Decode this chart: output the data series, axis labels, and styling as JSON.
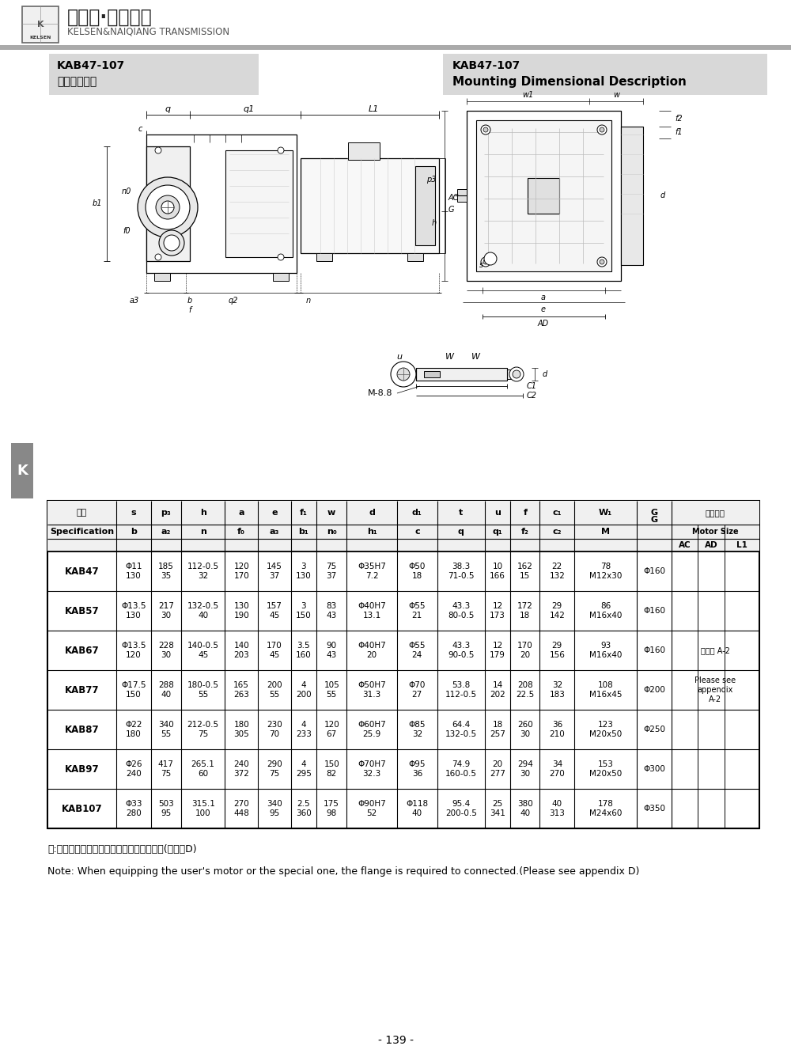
{
  "page_bg": "#ffffff",
  "header_line_color": "#aaaaaa",
  "header_logo_text": "凯尔森·耐强传动",
  "header_sub_text": "KELSEN&NAIQIANG TRANSMISSION",
  "title_left_main": "KAB47-107",
  "title_left_sub": "安装结构尺寸",
  "title_right_main": "KAB47-107",
  "title_right_sub": "Mounting Dimensional Description",
  "title_bg": "#d8d8d8",
  "note_zh": "注:电机需方配或配特殊电机时需加联接法兰(见附录D)",
  "note_en": "Note: When equipping the user's motor or the special one, the flange is required to connected.(Please see appendix D)",
  "page_number": "- 139 -",
  "rows": [
    {
      "spec": "KAB47",
      "s": "Φ11\n130",
      "p3": "185\n35",
      "h": "112-0.5\n32",
      "a": "120\n170",
      "e": "145\n37",
      "f1": "3\n130",
      "w": "75\n37",
      "d": "Φ35H7\n7.2",
      "d1": "Φ50\n18",
      "t": "38.3\n71-0.5",
      "u": "10\n166",
      "f": "162\n15",
      "c1": "22\n132",
      "W1": "78\nM12x30",
      "G": "Φ160",
      "note": ""
    },
    {
      "spec": "KAB57",
      "s": "Φ13.5\n130",
      "p3": "217\n30",
      "h": "132-0.5\n40",
      "a": "130\n190",
      "e": "157\n45",
      "f1": "3\n150",
      "w": "83\n43",
      "d": "Φ40H7\n13.1",
      "d1": "Φ55\n21",
      "t": "43.3\n80-0.5",
      "u": "12\n173",
      "f": "172\n18",
      "c1": "29\n142",
      "W1": "86\nM16x40",
      "G": "Φ160",
      "note": ""
    },
    {
      "spec": "KAB67",
      "s": "Φ13.5\n120",
      "p3": "228\n30",
      "h": "140-0.5\n45",
      "a": "140\n203",
      "e": "170\n45",
      "f1": "3.5\n160",
      "w": "90\n43",
      "d": "Φ40H7\n20",
      "d1": "Φ55\n24",
      "t": "43.3\n90-0.5",
      "u": "12\n179",
      "f": "170\n20",
      "c1": "29\n156",
      "W1": "93\nM16x40",
      "G": "Φ160",
      "note": "见附录 A-2"
    },
    {
      "spec": "KAB77",
      "s": "Φ17.5\n150",
      "p3": "288\n40",
      "h": "180-0.5\n55",
      "a": "165\n263",
      "e": "200\n55",
      "f1": "4\n200",
      "w": "105\n55",
      "d": "Φ50H7\n31.3",
      "d1": "Φ70\n27",
      "t": "53.8\n112-0.5",
      "u": "14\n202",
      "f": "208\n22.5",
      "c1": "32\n183",
      "W1": "108\nM16x45",
      "G": "Φ200",
      "note": "Please see\nappendix\nA-2"
    },
    {
      "spec": "KAB87",
      "s": "Φ22\n180",
      "p3": "340\n55",
      "h": "212-0.5\n75",
      "a": "180\n305",
      "e": "230\n70",
      "f1": "4\n233",
      "w": "120\n67",
      "d": "Φ60H7\n25.9",
      "d1": "Φ85\n32",
      "t": "64.4\n132-0.5",
      "u": "18\n257",
      "f": "260\n30",
      "c1": "36\n210",
      "W1": "123\nM20x50",
      "G": "Φ250",
      "note": ""
    },
    {
      "spec": "KAB97",
      "s": "Φ26\n240",
      "p3": "417\n75",
      "h": "265.1\n60",
      "a": "240\n372",
      "e": "290\n75",
      "f1": "4\n295",
      "w": "150\n82",
      "d": "Φ70H7\n32.3",
      "d1": "Φ95\n36",
      "t": "74.9\n160-0.5",
      "u": "20\n277",
      "f": "294\n30",
      "c1": "34\n270",
      "W1": "153\nM20x50",
      "G": "Φ300",
      "note": ""
    },
    {
      "spec": "KAB107",
      "s": "Φ33\n280",
      "p3": "503\n95",
      "h": "315.1\n100",
      "a": "270\n448",
      "e": "340\n95",
      "f1": "2.5\n360",
      "w": "175\n98",
      "d": "Φ90H7\n52",
      "d1": "Φ118\n40",
      "t": "95.4\n200-0.5",
      "u": "25\n341",
      "f": "380\n40",
      "c1": "40\n313",
      "W1": "178\nM24x60",
      "G": "Φ350",
      "note": ""
    }
  ]
}
